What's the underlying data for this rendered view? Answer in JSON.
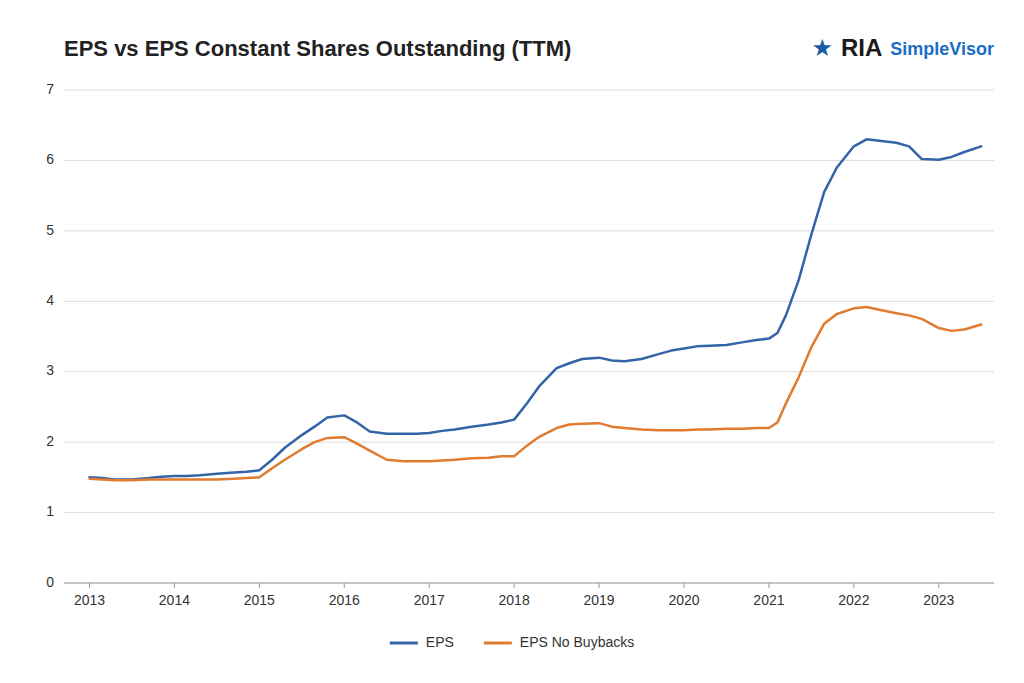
{
  "chart_data": {
    "type": "line",
    "title": "EPS vs EPS Constant Shares Outstanding (TTM)",
    "annotations": [
      {
        "text": "★",
        "color": "#1a5ba8"
      },
      {
        "text": "RIA",
        "color": "#1a1a1a"
      },
      {
        "text": "SimpleVisor",
        "color": "#1a6fc4"
      }
    ],
    "x": [
      2013.0,
      2013.15,
      2013.3,
      2013.5,
      2013.7,
      2013.85,
      2014.0,
      2014.15,
      2014.3,
      2014.5,
      2014.7,
      2014.85,
      2015.0,
      2015.15,
      2015.3,
      2015.5,
      2015.65,
      2015.8,
      2016.0,
      2016.15,
      2016.3,
      2016.5,
      2016.7,
      2016.85,
      2017.0,
      2017.15,
      2017.3,
      2017.5,
      2017.7,
      2017.85,
      2018.0,
      2018.15,
      2018.3,
      2018.5,
      2018.65,
      2018.8,
      2019.0,
      2019.15,
      2019.3,
      2019.5,
      2019.7,
      2019.85,
      2020.0,
      2020.15,
      2020.3,
      2020.5,
      2020.7,
      2020.85,
      2021.0,
      2021.1,
      2021.2,
      2021.35,
      2021.5,
      2021.65,
      2021.8,
      2022.0,
      2022.15,
      2022.3,
      2022.5,
      2022.65,
      2022.8,
      2023.0,
      2023.15,
      2023.3,
      2023.5
    ],
    "series": [
      {
        "name": "EPS",
        "color": "#3464a8",
        "values": [
          1.5,
          1.49,
          1.47,
          1.47,
          1.49,
          1.51,
          1.52,
          1.52,
          1.53,
          1.55,
          1.57,
          1.58,
          1.6,
          1.75,
          1.92,
          2.1,
          2.22,
          2.35,
          2.38,
          2.28,
          2.15,
          2.12,
          2.12,
          2.12,
          2.13,
          2.16,
          2.18,
          2.22,
          2.25,
          2.28,
          2.32,
          2.55,
          2.8,
          3.05,
          3.12,
          3.18,
          3.2,
          3.16,
          3.15,
          3.18,
          3.25,
          3.3,
          3.33,
          3.36,
          3.37,
          3.38,
          3.42,
          3.45,
          3.47,
          3.55,
          3.8,
          4.3,
          4.95,
          5.55,
          5.9,
          6.2,
          6.3,
          6.28,
          6.25,
          6.2,
          6.02,
          6.01,
          6.05,
          6.12,
          6.2
        ]
      },
      {
        "name": "EPS No Buybacks",
        "color": "#e07b30",
        "values": [
          1.48,
          1.47,
          1.46,
          1.46,
          1.47,
          1.47,
          1.47,
          1.47,
          1.47,
          1.47,
          1.48,
          1.49,
          1.5,
          1.63,
          1.75,
          1.9,
          2.0,
          2.06,
          2.07,
          1.98,
          1.88,
          1.75,
          1.73,
          1.73,
          1.73,
          1.74,
          1.75,
          1.77,
          1.78,
          1.8,
          1.8,
          1.95,
          2.08,
          2.2,
          2.25,
          2.26,
          2.27,
          2.22,
          2.2,
          2.18,
          2.17,
          2.17,
          2.17,
          2.18,
          2.18,
          2.19,
          2.19,
          2.2,
          2.2,
          2.28,
          2.55,
          2.92,
          3.35,
          3.68,
          3.82,
          3.9,
          3.92,
          3.88,
          3.83,
          3.8,
          3.75,
          3.62,
          3.58,
          3.6,
          3.67
        ]
      }
    ],
    "xlim": [
      2012.7,
      2023.65
    ],
    "xticks": [
      2013,
      2014,
      2015,
      2016,
      2017,
      2018,
      2019,
      2020,
      2021,
      2022,
      2023
    ],
    "ylim": [
      0,
      7
    ],
    "yticks": [
      0,
      1,
      2,
      3,
      4,
      5,
      6,
      7
    ],
    "grid": true,
    "legend": "bottom"
  }
}
